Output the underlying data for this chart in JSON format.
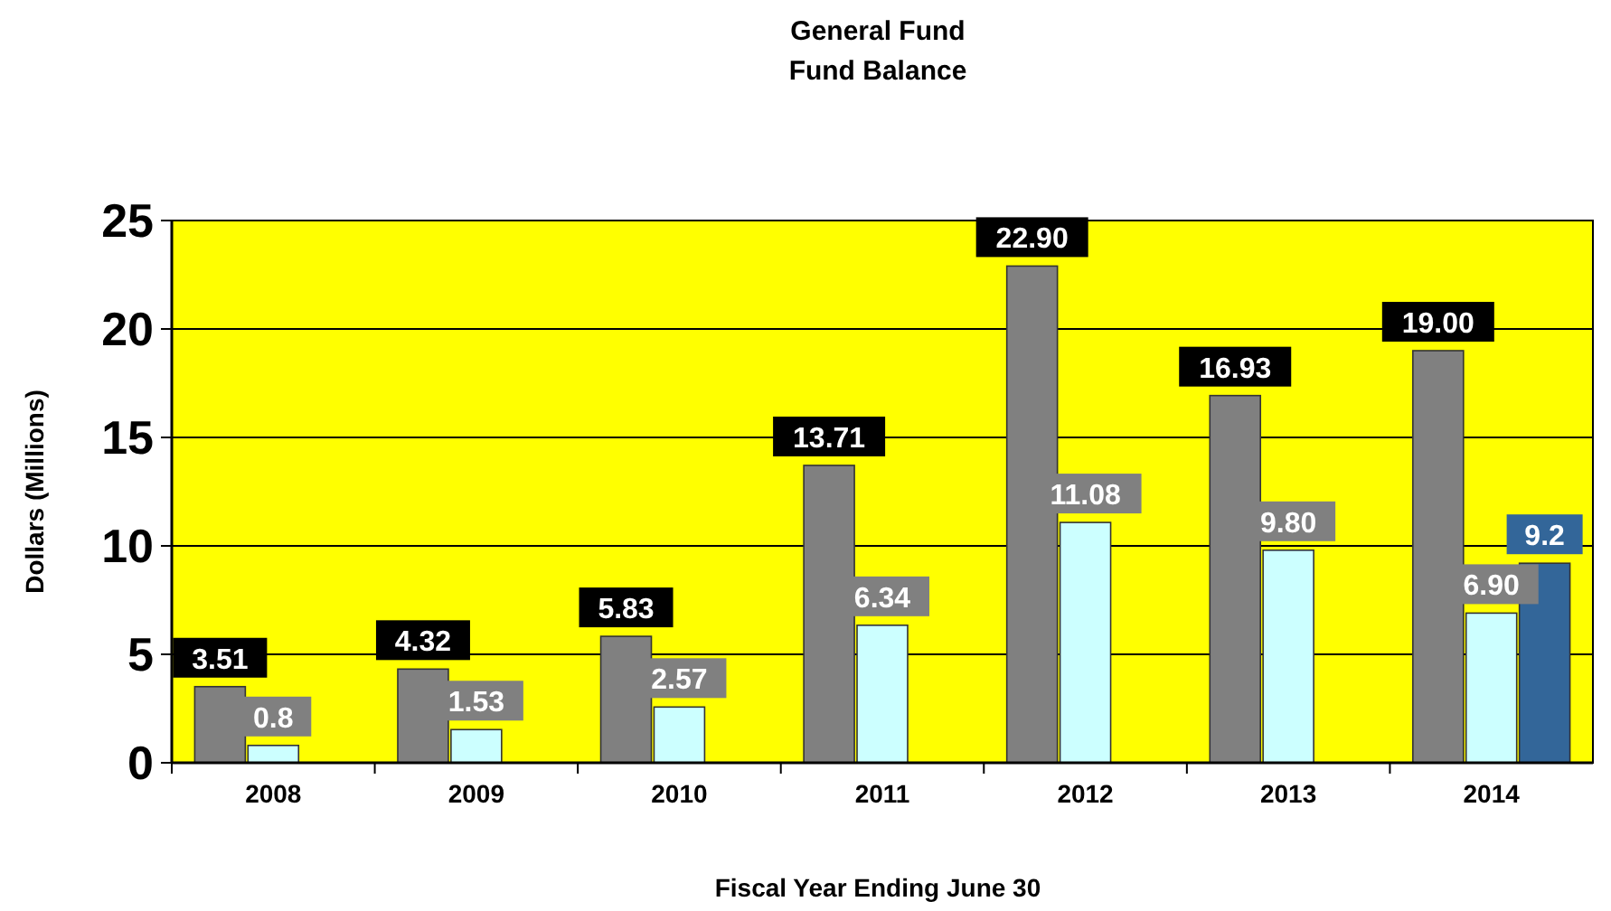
{
  "chart_data": {
    "type": "bar",
    "title": "General Fund",
    "subtitle": "Fund Balance",
    "xlabel": "Fiscal Year Ending June 30",
    "ylabel": "Dollars (Millions)",
    "categories": [
      "2008",
      "2009",
      "2010",
      "2011",
      "2012",
      "2013",
      "2014"
    ],
    "series": [
      {
        "color": "#808080",
        "values": [
          3.51,
          4.32,
          5.83,
          13.71,
          22.9,
          16.93,
          19.0
        ],
        "value_labels": [
          "3.51",
          "4.32",
          "5.83",
          "13.71",
          "22.90",
          "16.93",
          "19.00"
        ]
      },
      {
        "color": "#ccffff",
        "values": [
          0.8,
          1.53,
          2.57,
          6.34,
          11.08,
          9.8,
          6.9
        ],
        "value_labels": [
          "0.8",
          "1.53",
          "2.57",
          "6.34",
          "11.08",
          "9.80",
          "6.90"
        ]
      },
      {
        "color": "#336699",
        "values": [
          null,
          null,
          null,
          null,
          null,
          null,
          9.2
        ],
        "value_labels": [
          null,
          null,
          null,
          null,
          null,
          null,
          "9.2"
        ]
      }
    ],
    "ylim": [
      0,
      25
    ],
    "yticks": [
      0,
      5,
      10,
      15,
      20,
      25
    ],
    "grid": "y"
  }
}
